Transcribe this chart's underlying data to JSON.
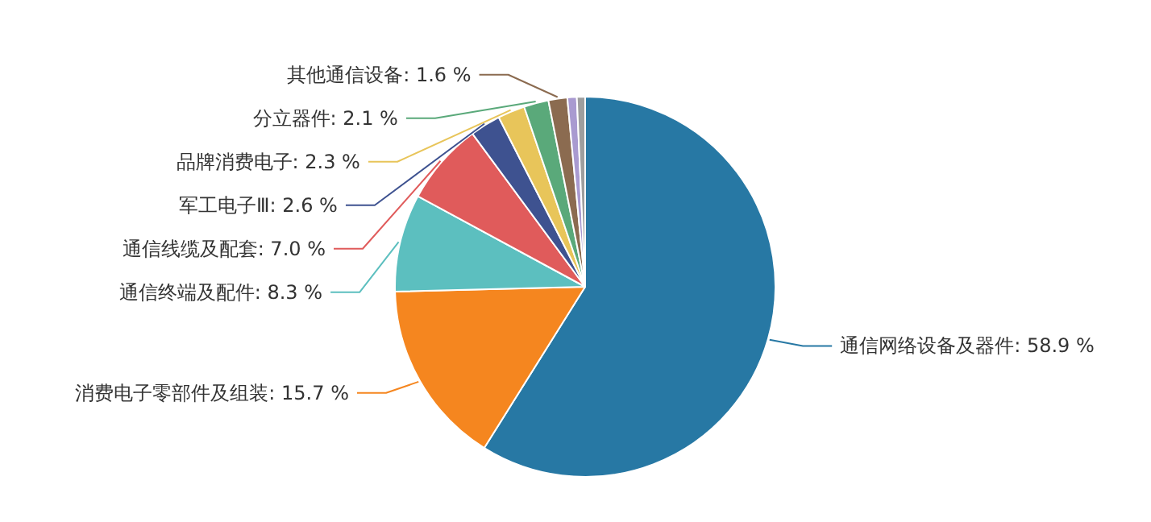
{
  "chart_data": {
    "type": "pie",
    "categories": [
      "通信网络设备及器件",
      "消费电子零部件及组装",
      "通信终端及配件",
      "通信线缆及配套",
      "军工电子Ⅲ",
      "品牌消费电子",
      "分立器件",
      "其他通信设备",
      null,
      null
    ],
    "values": [
      58.9,
      15.7,
      8.3,
      7.0,
      2.6,
      2.3,
      2.1,
      1.6,
      0.8,
      0.7
    ],
    "colors": [
      "#2778a4",
      "#f5861f",
      "#5cbfbf",
      "#e05b5b",
      "#3e5290",
      "#e8c55a",
      "#5aa97a",
      "#8b6b50",
      "#a99ad0",
      "#9e9e9e"
    ],
    "value_labels": [
      "58.9 %",
      "15.7 %",
      "8.3 %",
      "7.0 %",
      "2.6 %",
      "2.3 %",
      "2.1 %",
      "1.6 %",
      null,
      null
    ]
  }
}
